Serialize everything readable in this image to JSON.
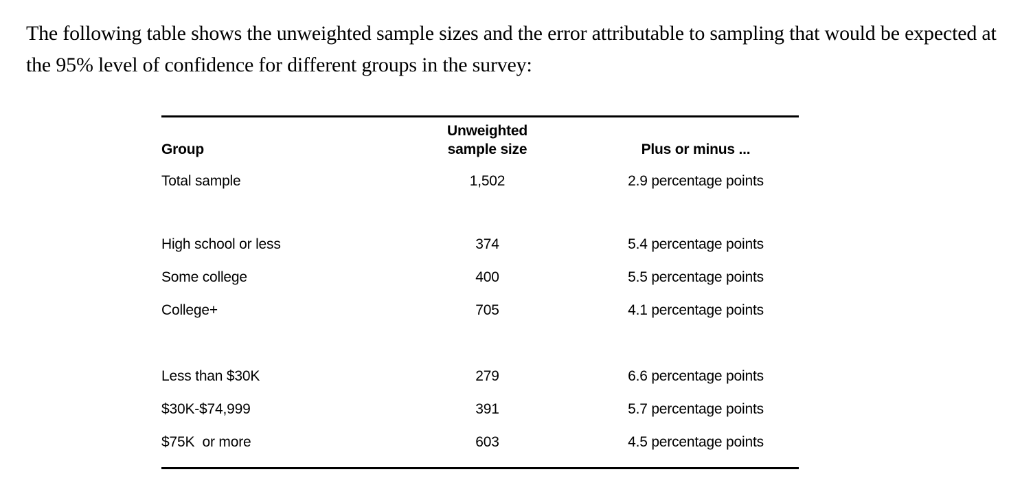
{
  "intro": "The following table shows the unweighted sample sizes and the error attributable to sampling that would be expected at the 95% level of confidence for different groups in the survey:",
  "table": {
    "headers": {
      "group": "Group",
      "size_line1": "Unweighted",
      "size_line2": "sample size",
      "moe": "Plus or minus ..."
    },
    "rows": [
      {
        "group": "Total sample",
        "size": "1,502",
        "moe": "2.9 percentage points"
      },
      {
        "group": "High school or less",
        "size": "374",
        "moe": "5.4 percentage points"
      },
      {
        "group": "Some college",
        "size": "400",
        "moe": "5.5 percentage points"
      },
      {
        "group": "College+",
        "size": "705",
        "moe": "4.1 percentage points"
      },
      {
        "group": "Less than $30K",
        "size": "279",
        "moe": "6.6 percentage points"
      },
      {
        "group": "$30K-$74,999",
        "size": "391",
        "moe": "5.7 percentage points"
      },
      {
        "group": "$75K  or more",
        "size": "603",
        "moe": "4.5 percentage points"
      }
    ]
  },
  "colors": {
    "text": "#000000",
    "background": "#ffffff",
    "rule": "#000000"
  }
}
